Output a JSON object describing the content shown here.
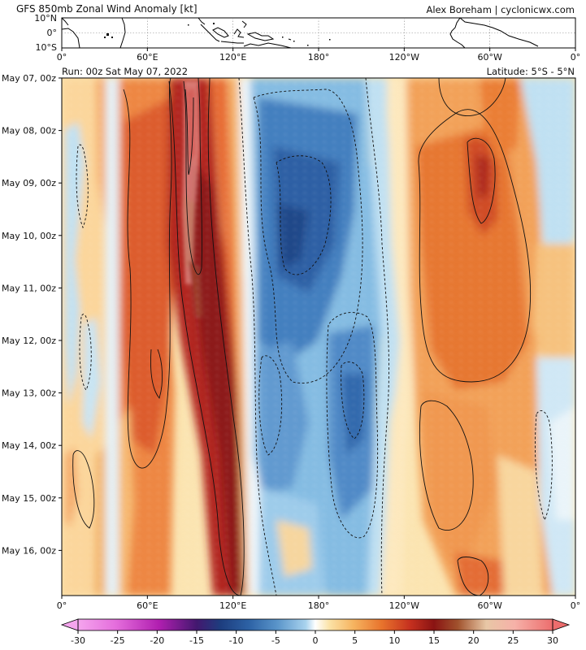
{
  "header": {
    "title": "GFS 850mb Zonal Wind Anomaly [kt]",
    "credit": "Alex Boreham | cyclonicwx.com",
    "run": "Run: 00z Sat May 07, 2022",
    "latitude": "Latitude: 5°S - 5°N"
  },
  "chart_data": {
    "type": "heatmap",
    "title": "GFS 850mb Zonal Wind Anomaly [kt]",
    "units": "kt",
    "x_tick_labels": [
      "0°",
      "60°E",
      "120°E",
      "180°",
      "120°W",
      "60°W",
      "0°"
    ],
    "x_tick_lons": [
      0,
      60,
      120,
      180,
      240,
      300,
      360
    ],
    "map_lat_labels": [
      "10°N",
      "0°",
      "10°S"
    ],
    "y_tick_labels": [
      "May 07, 00z",
      "May 08, 00z",
      "May 09, 00z",
      "May 10, 00z",
      "May 11, 00z",
      "May 12, 00z",
      "May 13, 00z",
      "May 14, 00z",
      "May 15, 00z",
      "May 16, 00z"
    ],
    "colorbar": {
      "tick_labels": [
        "-30",
        "-25",
        "-20",
        "-15",
        "-10",
        "-5",
        "0",
        "5",
        "10",
        "15",
        "20",
        "25",
        "30"
      ],
      "range": [
        -30,
        30
      ],
      "step": 2.5,
      "extend": "both"
    },
    "anomaly_bands": [
      {
        "lon_range": [
          40,
          70
        ],
        "time": "all",
        "sign": "positive",
        "peak": 12
      },
      {
        "lon_range": [
          75,
          95
        ],
        "time": "May 07 - May 11",
        "sign": "positive",
        "peak": 27
      },
      {
        "lon_range": [
          85,
          120
        ],
        "time": "May 10 - May 17",
        "sign": "positive",
        "peak": 17
      },
      {
        "lon_range": [
          125,
          170
        ],
        "time": "May 08 - May 16",
        "sign": "negative",
        "peak": -16
      },
      {
        "lon_range": [
          175,
          215
        ],
        "time": "May 12 - May 16",
        "sign": "negative",
        "peak": -11
      },
      {
        "lon_range": [
          235,
          330
        ],
        "time": "May 07 - May 17",
        "sign": "positive",
        "peak": 15
      },
      {
        "lon_range": [
          285,
          300
        ],
        "time": "May 08 - May 10",
        "sign": "positive",
        "peak": 21
      }
    ]
  }
}
